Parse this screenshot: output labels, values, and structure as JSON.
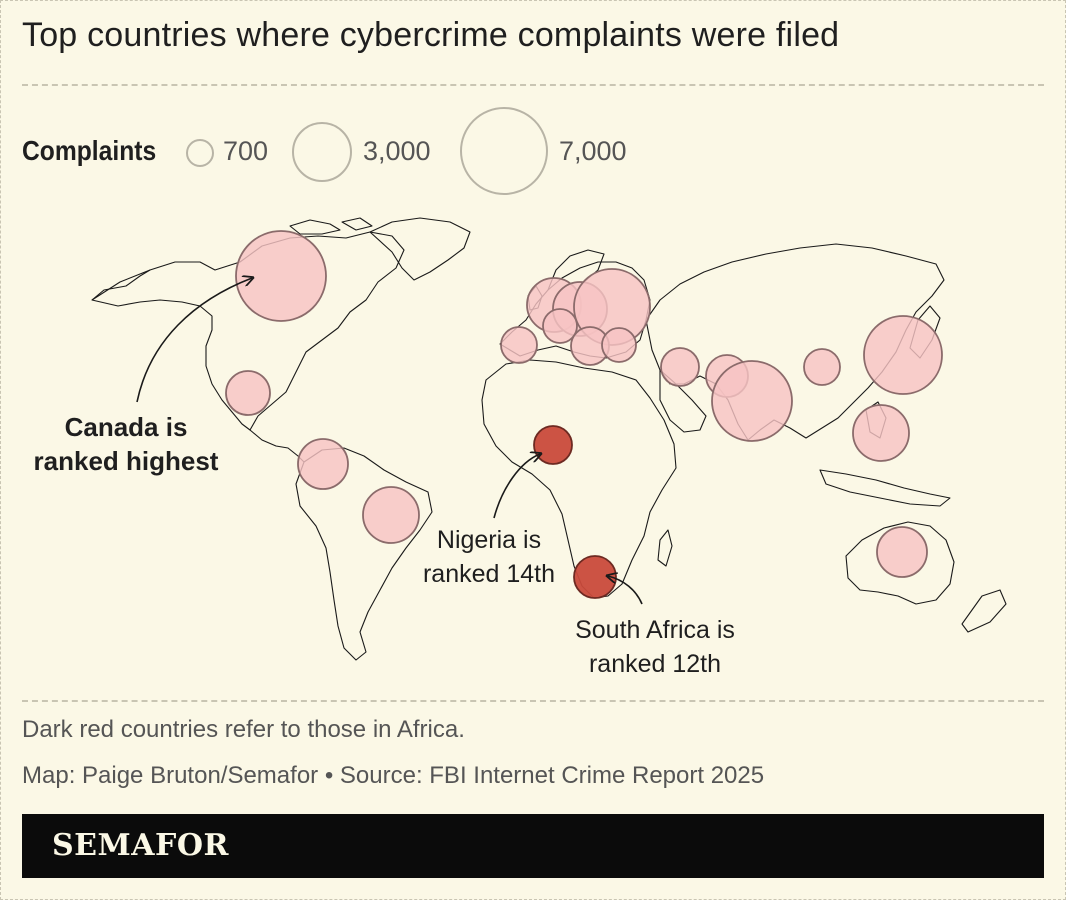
{
  "title": "Top countries where cybercrime complaints were filed",
  "legend": {
    "label": "Complaints",
    "sizes": [
      {
        "value": 700,
        "label": "700"
      },
      {
        "value": 3000,
        "label": "3,000"
      },
      {
        "value": 7000,
        "label": "7,000"
      }
    ]
  },
  "colors": {
    "background": "#fbf8e6",
    "bubble_fill": "#f7c3c3",
    "bubble_stroke": "#8b6b6b",
    "africa_fill": "#c94a3b",
    "africa_stroke": "#6d2a22",
    "land_stroke": "#1a1a1a",
    "rule": "#c9c5b3",
    "brand_bar": "#0b0b0b"
  },
  "annotations": {
    "canada": {
      "line1": "Canada is",
      "line2": "ranked highest"
    },
    "nigeria": {
      "line1": "Nigeria is",
      "line2": "ranked 14th"
    },
    "south_africa": {
      "line1": "South Africa is",
      "line2": "ranked 12th"
    }
  },
  "notes": {
    "africa": "Dark red countries refer to those in Africa.",
    "credit": "Map: Paige Bruton/Semafor • Source: FBI Internet Crime Report 2025"
  },
  "brand": "SEMAFOR"
}
